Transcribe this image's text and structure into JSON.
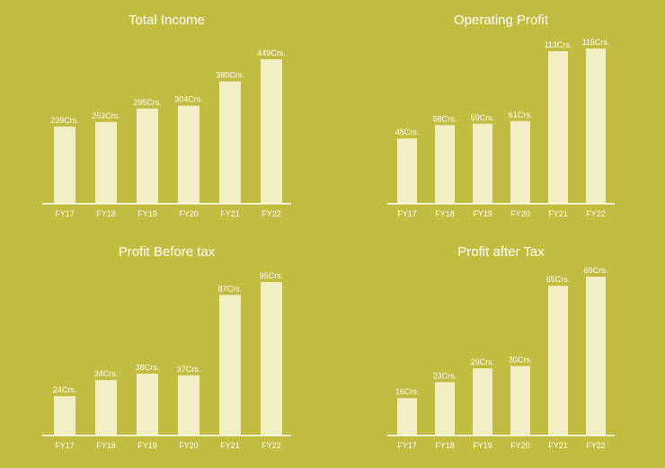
{
  "colors": {
    "background": "#c2bc41",
    "bar": "#f3efc4",
    "text": "#ffffff",
    "axis": "#ffffff"
  },
  "chart_data": [
    {
      "type": "bar",
      "title": "Total Income",
      "categories": [
        "FY17",
        "FY18",
        "FY19",
        "FY20",
        "FY21",
        "FY22"
      ],
      "values": [
        239,
        253,
        295,
        304,
        380,
        449
      ],
      "data_labels": [
        "239Crs.",
        "253Crs.",
        "295Crs.",
        "304Crs.",
        "380Crs.",
        "449Crs."
      ],
      "ylim": [
        0,
        449
      ]
    },
    {
      "type": "bar",
      "title": "Operating Profit",
      "categories": [
        "FY17",
        "FY18",
        "FY19",
        "FY20",
        "FY21",
        "FY22"
      ],
      "values": [
        48,
        58,
        59,
        61,
        113,
        115
      ],
      "data_labels": [
        "48Crs.",
        "58Crs.",
        "59Crs.",
        "61Crs.",
        "113Crs.",
        "115Crs."
      ],
      "ylim": [
        0,
        115
      ]
    },
    {
      "type": "bar",
      "title": "Profit Before tax",
      "categories": [
        "FY17",
        "FY18",
        "FY19",
        "FY20",
        "FY21",
        "FY22"
      ],
      "values": [
        24,
        34,
        38,
        37,
        87,
        95
      ],
      "data_labels": [
        "24Crs.",
        "34Crs.",
        "38Crs.",
        "37Crs.",
        "87Crs.",
        "95Crs."
      ],
      "ylim": [
        0,
        95
      ]
    },
    {
      "type": "bar",
      "title": "Profit after Tax",
      "categories": [
        "FY17",
        "FY18",
        "FY19",
        "FY20",
        "FY21",
        "FY22"
      ],
      "values": [
        16,
        23,
        29,
        30,
        65,
        69
      ],
      "data_labels": [
        "16Crs.",
        "23Crs.",
        "29Crs.",
        "30Crs.",
        "65Crs.",
        "69Crs."
      ],
      "ylim": [
        0,
        69
      ]
    }
  ]
}
